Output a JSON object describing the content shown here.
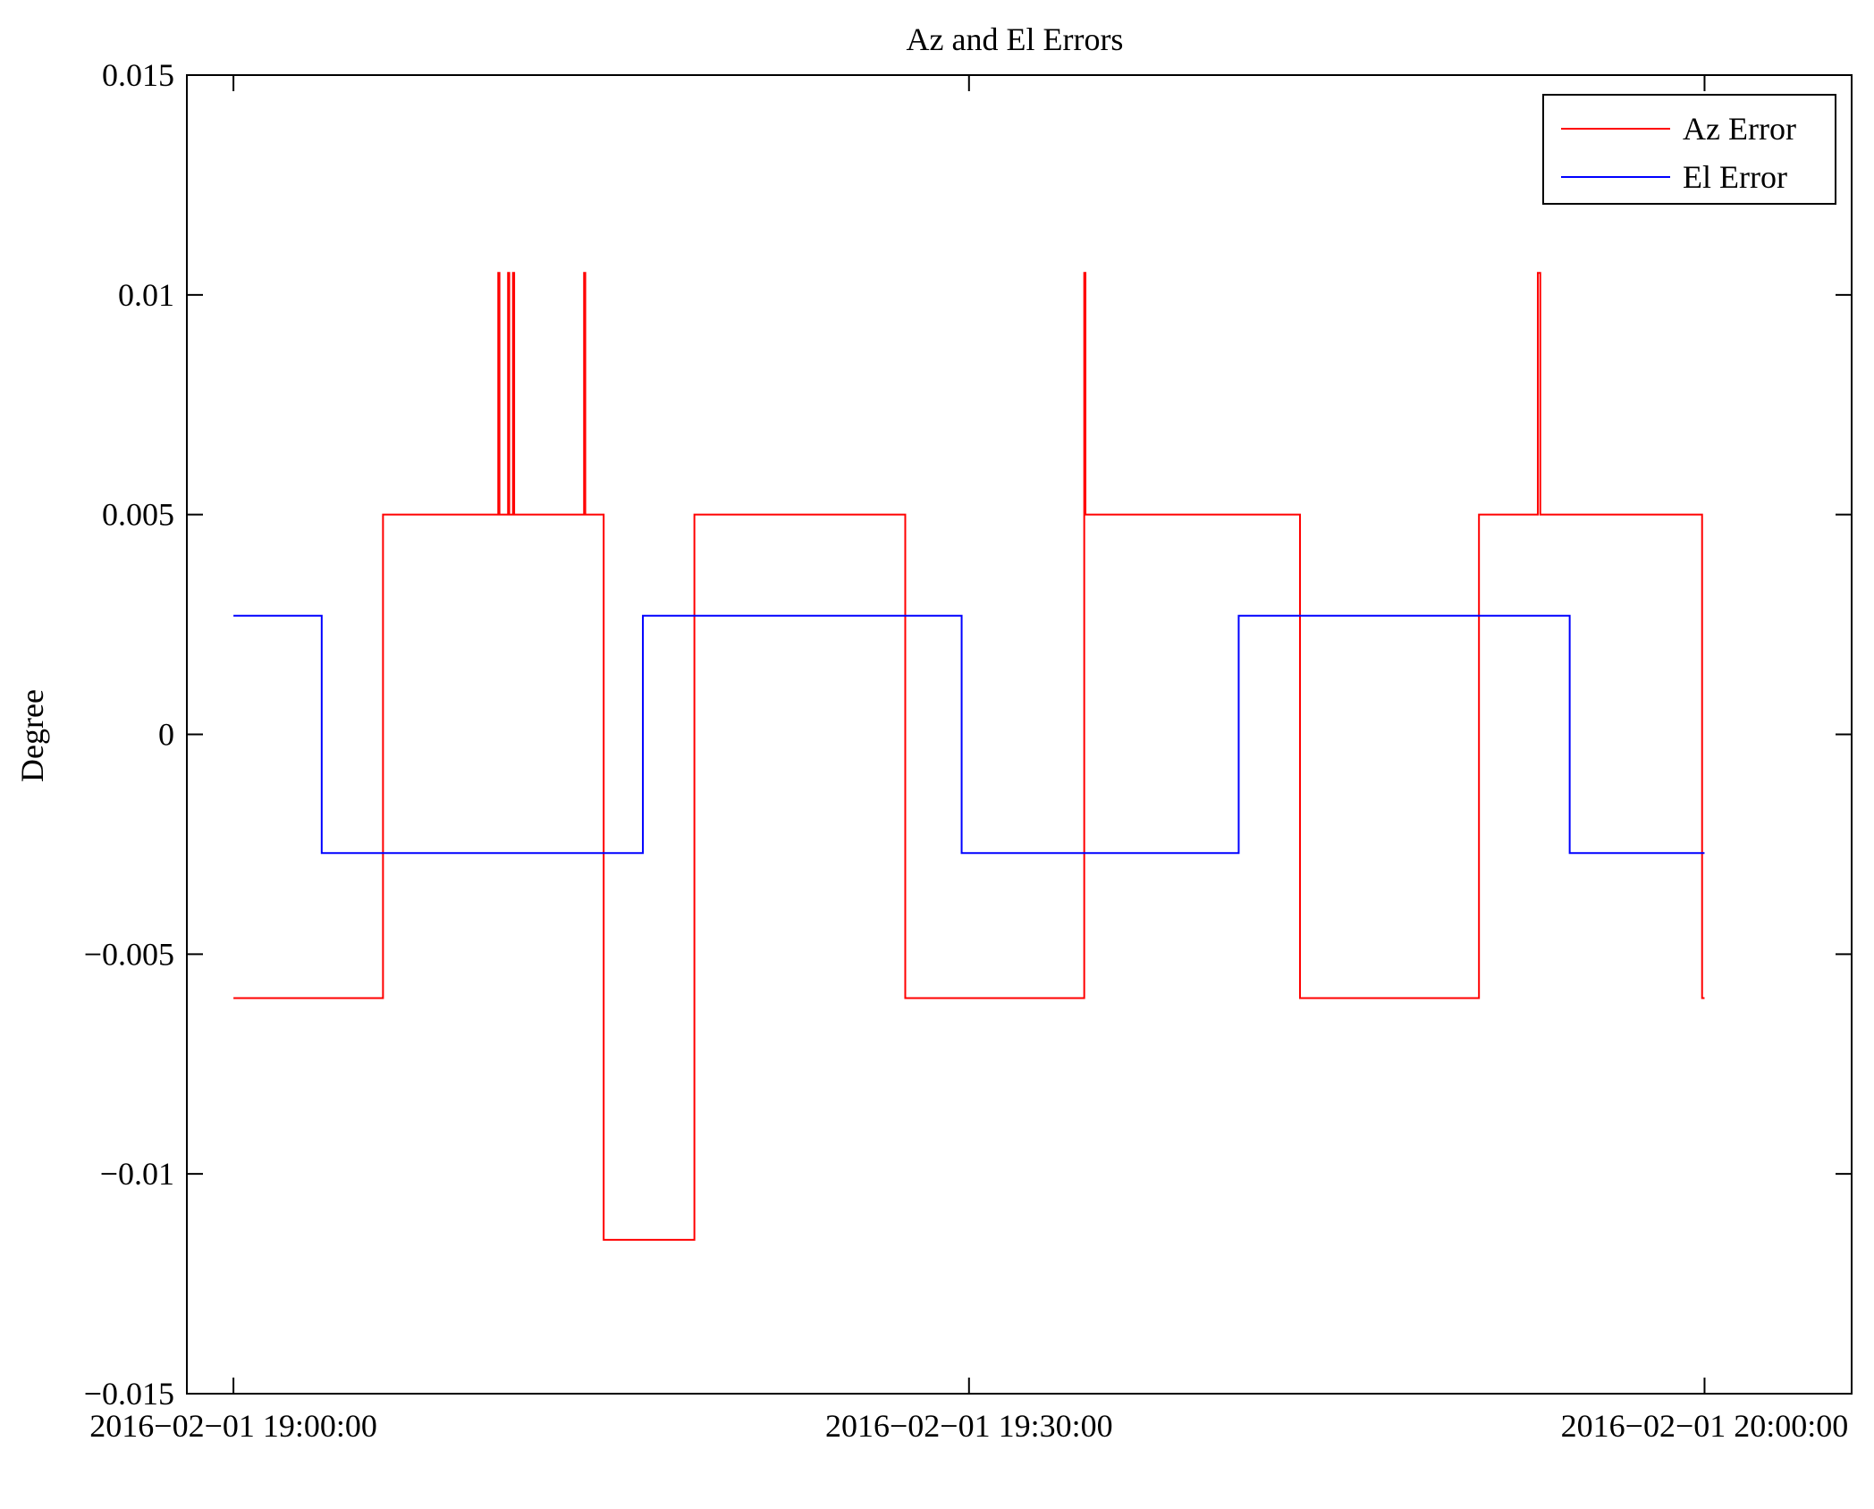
{
  "chart_data": {
    "type": "line",
    "title": "Az and El Errors",
    "xlabel": "",
    "ylabel": "Degree",
    "x_unit": "minutes after 2016-02-01 19:00:00",
    "xlim": [
      -1.9,
      66
    ],
    "ylim": [
      -0.015,
      0.015
    ],
    "x_ticks": [
      {
        "value": 0,
        "label": "2016−02−01 19:00:00"
      },
      {
        "value": 30,
        "label": "2016−02−01 19:30:00"
      },
      {
        "value": 60,
        "label": "2016−02−01 20:00:00"
      }
    ],
    "y_ticks": [
      {
        "value": -0.015,
        "label": "−0.015"
      },
      {
        "value": -0.01,
        "label": "−0.01"
      },
      {
        "value": -0.005,
        "label": "−0.005"
      },
      {
        "value": 0,
        "label": "0"
      },
      {
        "value": 0.005,
        "label": "0.005"
      },
      {
        "value": 0.01,
        "label": "0.01"
      },
      {
        "value": 0.015,
        "label": "0.015"
      }
    ],
    "grid": false,
    "legend_position": "top-right",
    "series": [
      {
        "name": "Az Error",
        "color": "#ff0000",
        "step": true,
        "x": [
          0,
          6.1,
          6.1,
          10.8,
          10.8,
          10.85,
          10.85,
          11.2,
          11.2,
          11.25,
          11.25,
          11.4,
          11.4,
          11.45,
          11.45,
          14.3,
          14.3,
          14.35,
          14.35,
          15.1,
          15.1,
          18.8,
          18.8,
          27.4,
          27.4,
          34.7,
          34.7,
          34.75,
          34.75,
          43.5,
          43.5,
          50.8,
          50.8,
          53.2,
          53.2,
          53.3,
          53.3,
          59.9,
          59.9,
          60
        ],
        "y": [
          -0.006,
          -0.006,
          0.005,
          0.005,
          0.0105,
          0.0105,
          0.005,
          0.005,
          0.0105,
          0.0105,
          0.005,
          0.005,
          0.0105,
          0.0105,
          0.005,
          0.005,
          0.0105,
          0.0105,
          0.005,
          0.005,
          -0.0115,
          -0.0115,
          0.005,
          0.005,
          -0.006,
          -0.006,
          0.0105,
          0.0105,
          0.005,
          0.005,
          -0.006,
          -0.006,
          0.005,
          0.005,
          0.0105,
          0.0105,
          0.005,
          0.005,
          -0.006,
          -0.006
        ]
      },
      {
        "name": "El Error",
        "color": "#0000ff",
        "step": true,
        "x": [
          0,
          3.6,
          3.6,
          16.7,
          16.7,
          29.7,
          29.7,
          41,
          41,
          54.5,
          54.5,
          60
        ],
        "y": [
          0.0027,
          0.0027,
          -0.0027,
          -0.0027,
          0.0027,
          0.0027,
          -0.0027,
          -0.0027,
          0.0027,
          0.0027,
          -0.0027,
          -0.0027
        ]
      }
    ]
  }
}
